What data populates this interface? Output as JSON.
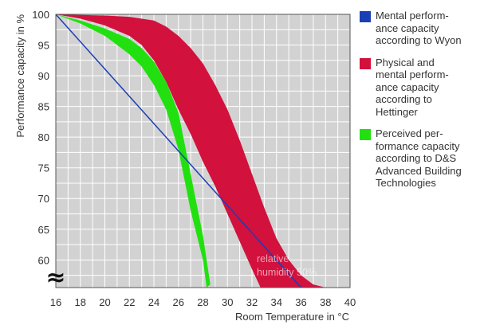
{
  "chart_data": {
    "type": "area",
    "xlabel": "Room Temperature in °C",
    "ylabel": "Performance capacity in %",
    "xlim": [
      16,
      40
    ],
    "ylim": [
      55.5,
      100
    ],
    "xticks": [
      "16",
      "18",
      "20",
      "22",
      "24",
      "26",
      "28",
      "30",
      "32",
      "34",
      "36",
      "38",
      "40"
    ],
    "yticks": [
      "60",
      "65",
      "70",
      "75",
      "80",
      "85",
      "90",
      "95",
      "100"
    ],
    "grid": true,
    "legend_position": "right",
    "axis_break_symbol": "≈",
    "annotation": "relative\nhumidity 50%",
    "series": [
      {
        "name": "Mental perform-\nance capacity\naccording to Wyon",
        "kind": "line",
        "color": "#1a3fb5",
        "points": [
          [
            16,
            100
          ],
          [
            36,
            55.5
          ]
        ]
      },
      {
        "name": "Physical and\nmental perform-\nance capacity\naccording to\nHettinger",
        "kind": "band",
        "color": "#d2113d",
        "upper": [
          [
            16,
            100
          ],
          [
            18,
            99.9
          ],
          [
            20,
            99.8
          ],
          [
            22,
            99.6
          ],
          [
            24,
            99
          ],
          [
            25,
            98
          ],
          [
            26,
            96.5
          ],
          [
            27,
            94.5
          ],
          [
            28,
            92
          ],
          [
            29,
            88.5
          ],
          [
            30,
            84.5
          ],
          [
            31,
            79.5
          ],
          [
            32,
            74
          ],
          [
            33,
            68.5
          ],
          [
            34,
            63.5
          ],
          [
            35,
            60
          ],
          [
            36,
            57.5
          ],
          [
            37,
            56
          ],
          [
            38,
            55.5
          ]
        ],
        "lower": [
          [
            16,
            100
          ],
          [
            18,
            99.3
          ],
          [
            20,
            98.2
          ],
          [
            22,
            96.5
          ],
          [
            23,
            95
          ],
          [
            24,
            92.5
          ],
          [
            25,
            89
          ],
          [
            26,
            84.5
          ],
          [
            27,
            80.5
          ],
          [
            28,
            76
          ],
          [
            29,
            72
          ],
          [
            30,
            67.5
          ],
          [
            31,
            63
          ],
          [
            32,
            58.5
          ],
          [
            32.7,
            55.5
          ]
        ]
      },
      {
        "name": "Perceived per-\nformance capacity\naccording to D&S\nAdvanced Building\nTechnologies",
        "kind": "band",
        "color": "#22e010",
        "upper": [
          [
            16,
            100
          ],
          [
            18,
            99
          ],
          [
            20,
            97.7
          ],
          [
            22,
            96
          ],
          [
            23,
            94.5
          ],
          [
            24,
            92.3
          ],
          [
            25,
            89
          ],
          [
            26,
            84
          ],
          [
            27,
            74
          ],
          [
            28,
            64
          ],
          [
            28.6,
            56
          ]
        ],
        "lower": [
          [
            16,
            100
          ],
          [
            18,
            98.5
          ],
          [
            20,
            96.5
          ],
          [
            21,
            95
          ],
          [
            22,
            93.5
          ],
          [
            23,
            91.5
          ],
          [
            24,
            88.5
          ],
          [
            25,
            84.5
          ],
          [
            26,
            78
          ],
          [
            27,
            68
          ],
          [
            28,
            60
          ],
          [
            28.3,
            55.5
          ]
        ]
      }
    ]
  }
}
